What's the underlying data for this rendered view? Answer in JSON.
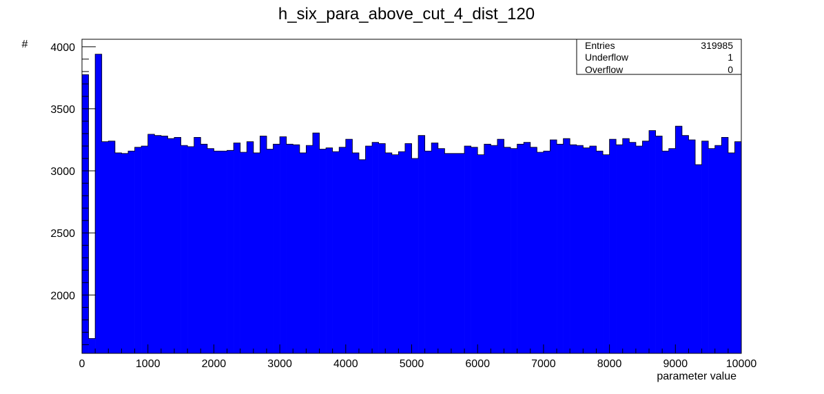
{
  "chart_data": {
    "type": "bar",
    "title": "h_six_para_above_cut_4_dist_120",
    "xlabel": "parameter value",
    "ylabel": "#",
    "xlim": [
      0,
      10000
    ],
    "ylim": [
      1530,
      4060
    ],
    "bar_color": "#0000ff",
    "x_ticks": [
      "0",
      "1000",
      "2000",
      "3000",
      "4000",
      "5000",
      "6000",
      "7000",
      "8000",
      "9000",
      "10000"
    ],
    "y_ticks": [
      "2000",
      "2500",
      "3000",
      "3500",
      "4000"
    ],
    "bin_width": 100,
    "values": [
      3775,
      1650,
      3940,
      3235,
      3240,
      3145,
      3140,
      3160,
      3190,
      3200,
      3295,
      3285,
      3280,
      3260,
      3270,
      3205,
      3195,
      3270,
      3215,
      3180,
      3160,
      3160,
      3165,
      3225,
      3150,
      3235,
      3145,
      3280,
      3175,
      3215,
      3275,
      3215,
      3210,
      3145,
      3205,
      3305,
      3175,
      3185,
      3155,
      3190,
      3255,
      3145,
      3090,
      3200,
      3230,
      3220,
      3145,
      3130,
      3155,
      3220,
      3100,
      3285,
      3160,
      3225,
      3180,
      3140,
      3140,
      3140,
      3200,
      3190,
      3130,
      3215,
      3205,
      3255,
      3190,
      3180,
      3215,
      3230,
      3190,
      3150,
      3160,
      3250,
      3215,
      3260,
      3210,
      3205,
      3185,
      3200,
      3160,
      3130,
      3255,
      3210,
      3260,
      3230,
      3200,
      3240,
      3325,
      3280,
      3160,
      3180,
      3360,
      3285,
      3250,
      3050,
      3240,
      3180,
      3205,
      3270,
      3145,
      3235
    ],
    "stats": {
      "rows": [
        {
          "label": "Entries",
          "value": "319985"
        },
        {
          "label": "Underflow",
          "value": "1"
        },
        {
          "label": "Overflow",
          "value": "0"
        }
      ]
    }
  }
}
